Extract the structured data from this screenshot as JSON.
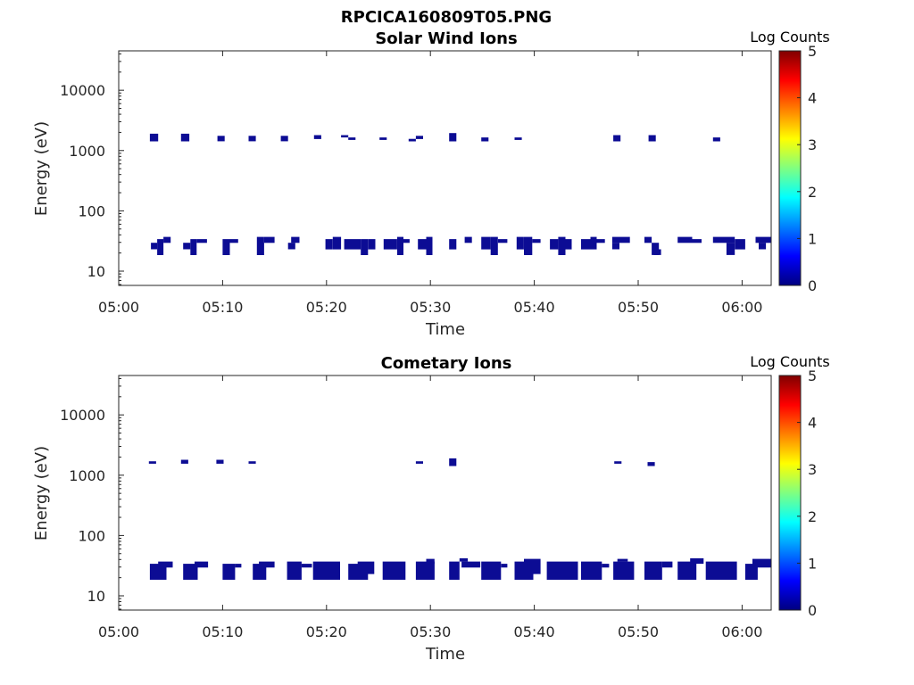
{
  "figure_title": "RPCICA160809T05.PNG",
  "colors": {
    "data_fill": "#0c0c94",
    "colormap": [
      "#000080",
      "#0000ff",
      "#0080ff",
      "#00ffff",
      "#80ff80",
      "#ffff00",
      "#ff8000",
      "#ff0000",
      "#800000"
    ]
  },
  "chart_data": [
    {
      "type": "heatmap",
      "title": "Solar Wind Ions",
      "xlabel": "Time",
      "ylabel": "Energy (eV)",
      "x_ticks": [
        "05:00",
        "05:10",
        "05:20",
        "05:30",
        "05:40",
        "05:50",
        "06:00"
      ],
      "y_ticks": [
        "10",
        "100",
        "1000",
        "10000"
      ],
      "y_scale": "log",
      "xlim_minutes": [
        0,
        62.8
      ],
      "ylim": [
        5.8,
        45000
      ],
      "colorbar": {
        "label": "Log Counts",
        "range": [
          0,
          5
        ],
        "ticks": [
          "0",
          "1",
          "2",
          "3",
          "4",
          "5"
        ]
      },
      "high_energy_patches": [
        {
          "t0": 3.0,
          "t1": 3.8,
          "e0": 1420,
          "e1": 1900
        },
        {
          "t0": 6.0,
          "t1": 6.8,
          "e0": 1420,
          "e1": 1900
        },
        {
          "t0": 9.5,
          "t1": 10.2,
          "e0": 1420,
          "e1": 1750
        },
        {
          "t0": 12.5,
          "t1": 13.2,
          "e0": 1420,
          "e1": 1750
        },
        {
          "t0": 15.6,
          "t1": 16.3,
          "e0": 1420,
          "e1": 1750
        },
        {
          "t0": 18.8,
          "t1": 19.5,
          "e0": 1550,
          "e1": 1800
        },
        {
          "t0": 21.4,
          "t1": 22.1,
          "e0": 1650,
          "e1": 1800
        },
        {
          "t0": 22.1,
          "t1": 22.8,
          "e0": 1500,
          "e1": 1650
        },
        {
          "t0": 25.1,
          "t1": 25.8,
          "e0": 1500,
          "e1": 1650
        },
        {
          "t0": 27.9,
          "t1": 28.6,
          "e0": 1420,
          "e1": 1560
        },
        {
          "t0": 28.6,
          "t1": 29.3,
          "e0": 1550,
          "e1": 1750
        },
        {
          "t0": 31.8,
          "t1": 32.5,
          "e0": 1420,
          "e1": 1950
        },
        {
          "t0": 34.9,
          "t1": 35.6,
          "e0": 1420,
          "e1": 1650
        },
        {
          "t0": 38.1,
          "t1": 38.8,
          "e0": 1500,
          "e1": 1650
        },
        {
          "t0": 47.6,
          "t1": 48.3,
          "e0": 1420,
          "e1": 1800
        },
        {
          "t0": 51.0,
          "t1": 51.7,
          "e0": 1420,
          "e1": 1800
        },
        {
          "t0": 57.2,
          "t1": 57.9,
          "e0": 1420,
          "e1": 1650
        }
      ],
      "low_energy_patches": [
        {
          "t0": 3.1,
          "t1": 3.7,
          "e0": 23,
          "e1": 29.5
        },
        {
          "t0": 3.7,
          "t1": 4.3,
          "e0": 18.5,
          "e1": 34
        },
        {
          "t0": 4.3,
          "t1": 5.0,
          "e0": 29.5,
          "e1": 37
        },
        {
          "t0": 6.2,
          "t1": 6.9,
          "e0": 23,
          "e1": 29.5
        },
        {
          "t0": 6.9,
          "t1": 7.5,
          "e0": 18.5,
          "e1": 34
        },
        {
          "t0": 7.5,
          "t1": 8.5,
          "e0": 29.5,
          "e1": 34
        },
        {
          "t0": 10.0,
          "t1": 10.7,
          "e0": 18.5,
          "e1": 34
        },
        {
          "t0": 10.7,
          "t1": 11.5,
          "e0": 29.5,
          "e1": 34
        },
        {
          "t0": 13.3,
          "t1": 14.0,
          "e0": 18.5,
          "e1": 37
        },
        {
          "t0": 14.0,
          "t1": 15.0,
          "e0": 29.5,
          "e1": 37
        },
        {
          "t0": 16.3,
          "t1": 17.0,
          "e0": 23,
          "e1": 29.5
        },
        {
          "t0": 16.6,
          "t1": 17.4,
          "e0": 29.5,
          "e1": 37
        },
        {
          "t0": 19.9,
          "t1": 20.6,
          "e0": 23,
          "e1": 34
        },
        {
          "t0": 20.6,
          "t1": 21.4,
          "e0": 23,
          "e1": 37
        },
        {
          "t0": 21.7,
          "t1": 23.3,
          "e0": 23,
          "e1": 34
        },
        {
          "t0": 23.3,
          "t1": 24.0,
          "e0": 18.5,
          "e1": 34
        },
        {
          "t0": 24.0,
          "t1": 24.7,
          "e0": 23,
          "e1": 34
        },
        {
          "t0": 25.5,
          "t1": 26.8,
          "e0": 23,
          "e1": 34
        },
        {
          "t0": 26.8,
          "t1": 27.4,
          "e0": 18.5,
          "e1": 37
        },
        {
          "t0": 27.4,
          "t1": 28.0,
          "e0": 29.5,
          "e1": 34
        },
        {
          "t0": 28.8,
          "t1": 29.6,
          "e0": 23,
          "e1": 34
        },
        {
          "t0": 29.6,
          "t1": 30.2,
          "e0": 18.5,
          "e1": 37
        },
        {
          "t0": 31.8,
          "t1": 32.5,
          "e0": 23,
          "e1": 34
        },
        {
          "t0": 33.3,
          "t1": 34.0,
          "e0": 29.5,
          "e1": 37
        },
        {
          "t0": 34.9,
          "t1": 35.8,
          "e0": 23,
          "e1": 37
        },
        {
          "t0": 35.8,
          "t1": 36.5,
          "e0": 18.5,
          "e1": 37
        },
        {
          "t0": 36.5,
          "t1": 37.4,
          "e0": 29.5,
          "e1": 34
        },
        {
          "t0": 38.3,
          "t1": 39.0,
          "e0": 23,
          "e1": 37
        },
        {
          "t0": 39.0,
          "t1": 39.8,
          "e0": 18.5,
          "e1": 37
        },
        {
          "t0": 39.8,
          "t1": 40.6,
          "e0": 29.5,
          "e1": 34
        },
        {
          "t0": 41.5,
          "t1": 42.3,
          "e0": 23,
          "e1": 34
        },
        {
          "t0": 42.3,
          "t1": 43.0,
          "e0": 18.5,
          "e1": 37
        },
        {
          "t0": 43.0,
          "t1": 43.6,
          "e0": 23,
          "e1": 34
        },
        {
          "t0": 44.5,
          "t1": 45.4,
          "e0": 23,
          "e1": 34
        },
        {
          "t0": 45.4,
          "t1": 46.0,
          "e0": 23,
          "e1": 37
        },
        {
          "t0": 46.0,
          "t1": 46.8,
          "e0": 29.5,
          "e1": 34
        },
        {
          "t0": 47.5,
          "t1": 49.2,
          "e0": 29.5,
          "e1": 37
        },
        {
          "t0": 47.5,
          "t1": 48.2,
          "e0": 23,
          "e1": 29.5
        },
        {
          "t0": 50.6,
          "t1": 51.3,
          "e0": 29.5,
          "e1": 37
        },
        {
          "t0": 51.3,
          "t1": 52.0,
          "e0": 18.5,
          "e1": 29.5
        },
        {
          "t0": 51.5,
          "t1": 52.2,
          "e0": 18.5,
          "e1": 23
        },
        {
          "t0": 53.8,
          "t1": 55.2,
          "e0": 29.5,
          "e1": 37
        },
        {
          "t0": 55.2,
          "t1": 56.1,
          "e0": 29.5,
          "e1": 34
        },
        {
          "t0": 57.2,
          "t1": 59.3,
          "e0": 29.5,
          "e1": 37
        },
        {
          "t0": 58.5,
          "t1": 59.3,
          "e0": 18.5,
          "e1": 29.5
        },
        {
          "t0": 59.3,
          "t1": 60.3,
          "e0": 23,
          "e1": 34
        },
        {
          "t0": 61.3,
          "t1": 62.8,
          "e0": 29.5,
          "e1": 37
        },
        {
          "t0": 61.6,
          "t1": 62.3,
          "e0": 23,
          "e1": 29.5
        }
      ]
    },
    {
      "type": "heatmap",
      "title": "Cometary Ions",
      "xlabel": "Time",
      "ylabel": "Energy (eV)",
      "x_ticks": [
        "05:00",
        "05:10",
        "05:20",
        "05:30",
        "05:40",
        "05:50",
        "06:00"
      ],
      "y_ticks": [
        "10",
        "100",
        "1000",
        "10000"
      ],
      "y_scale": "log",
      "xlim_minutes": [
        0,
        62.8
      ],
      "ylim": [
        5.8,
        45000
      ],
      "colorbar": {
        "label": "Log Counts",
        "range": [
          0,
          5
        ],
        "ticks": [
          "0",
          "1",
          "2",
          "3",
          "4",
          "5"
        ]
      },
      "high_energy_patches": [
        {
          "t0": 2.9,
          "t1": 3.6,
          "e0": 1550,
          "e1": 1700
        },
        {
          "t0": 6.0,
          "t1": 6.7,
          "e0": 1550,
          "e1": 1800
        },
        {
          "t0": 9.4,
          "t1": 10.1,
          "e0": 1550,
          "e1": 1800
        },
        {
          "t0": 12.5,
          "t1": 13.2,
          "e0": 1550,
          "e1": 1700
        },
        {
          "t0": 28.6,
          "t1": 29.3,
          "e0": 1550,
          "e1": 1700
        },
        {
          "t0": 31.8,
          "t1": 32.5,
          "e0": 1420,
          "e1": 1900
        },
        {
          "t0": 47.7,
          "t1": 48.4,
          "e0": 1550,
          "e1": 1700
        },
        {
          "t0": 50.9,
          "t1": 51.6,
          "e0": 1420,
          "e1": 1650
        }
      ],
      "low_energy_patches": [
        {
          "t0": 3.0,
          "t1": 4.6,
          "e0": 18.5,
          "e1": 34
        },
        {
          "t0": 3.8,
          "t1": 5.2,
          "e0": 29.5,
          "e1": 37
        },
        {
          "t0": 6.2,
          "t1": 7.6,
          "e0": 18.5,
          "e1": 34
        },
        {
          "t0": 7.3,
          "t1": 8.6,
          "e0": 29.5,
          "e1": 37
        },
        {
          "t0": 10.0,
          "t1": 11.2,
          "e0": 18.5,
          "e1": 34
        },
        {
          "t0": 11.2,
          "t1": 11.8,
          "e0": 29.5,
          "e1": 34
        },
        {
          "t0": 12.9,
          "t1": 14.2,
          "e0": 18.5,
          "e1": 34
        },
        {
          "t0": 13.5,
          "t1": 15.0,
          "e0": 29.5,
          "e1": 37
        },
        {
          "t0": 16.2,
          "t1": 17.6,
          "e0": 18.5,
          "e1": 37
        },
        {
          "t0": 17.6,
          "t1": 18.6,
          "e0": 29.5,
          "e1": 34
        },
        {
          "t0": 18.7,
          "t1": 21.3,
          "e0": 18.5,
          "e1": 37
        },
        {
          "t0": 22.1,
          "t1": 24.0,
          "e0": 18.5,
          "e1": 34
        },
        {
          "t0": 23.0,
          "t1": 24.6,
          "e0": 23,
          "e1": 37
        },
        {
          "t0": 25.4,
          "t1": 27.6,
          "e0": 18.5,
          "e1": 37
        },
        {
          "t0": 28.6,
          "t1": 30.4,
          "e0": 18.5,
          "e1": 37
        },
        {
          "t0": 29.6,
          "t1": 30.4,
          "e0": 34,
          "e1": 41
        },
        {
          "t0": 31.8,
          "t1": 32.8,
          "e0": 18.5,
          "e1": 37
        },
        {
          "t0": 32.8,
          "t1": 33.6,
          "e0": 37,
          "e1": 42
        },
        {
          "t0": 33.0,
          "t1": 34.8,
          "e0": 29.5,
          "e1": 37
        },
        {
          "t0": 34.9,
          "t1": 36.8,
          "e0": 18.5,
          "e1": 37
        },
        {
          "t0": 36.8,
          "t1": 37.4,
          "e0": 29.5,
          "e1": 34
        },
        {
          "t0": 38.1,
          "t1": 39.9,
          "e0": 18.5,
          "e1": 37
        },
        {
          "t0": 39.0,
          "t1": 40.6,
          "e0": 23,
          "e1": 41
        },
        {
          "t0": 41.2,
          "t1": 44.2,
          "e0": 18.5,
          "e1": 37
        },
        {
          "t0": 44.5,
          "t1": 46.5,
          "e0": 18.5,
          "e1": 37
        },
        {
          "t0": 46.5,
          "t1": 47.2,
          "e0": 29.5,
          "e1": 34
        },
        {
          "t0": 47.6,
          "t1": 49.6,
          "e0": 18.5,
          "e1": 37
        },
        {
          "t0": 48.0,
          "t1": 49.0,
          "e0": 37,
          "e1": 41
        },
        {
          "t0": 50.6,
          "t1": 52.3,
          "e0": 18.5,
          "e1": 37
        },
        {
          "t0": 52.3,
          "t1": 53.3,
          "e0": 29.5,
          "e1": 37
        },
        {
          "t0": 53.8,
          "t1": 55.6,
          "e0": 18.5,
          "e1": 37
        },
        {
          "t0": 55.0,
          "t1": 56.3,
          "e0": 34,
          "e1": 42
        },
        {
          "t0": 56.5,
          "t1": 59.5,
          "e0": 18.5,
          "e1": 37
        },
        {
          "t0": 60.3,
          "t1": 61.5,
          "e0": 18.5,
          "e1": 34
        },
        {
          "t0": 61.0,
          "t1": 62.8,
          "e0": 29.5,
          "e1": 41
        }
      ]
    }
  ]
}
